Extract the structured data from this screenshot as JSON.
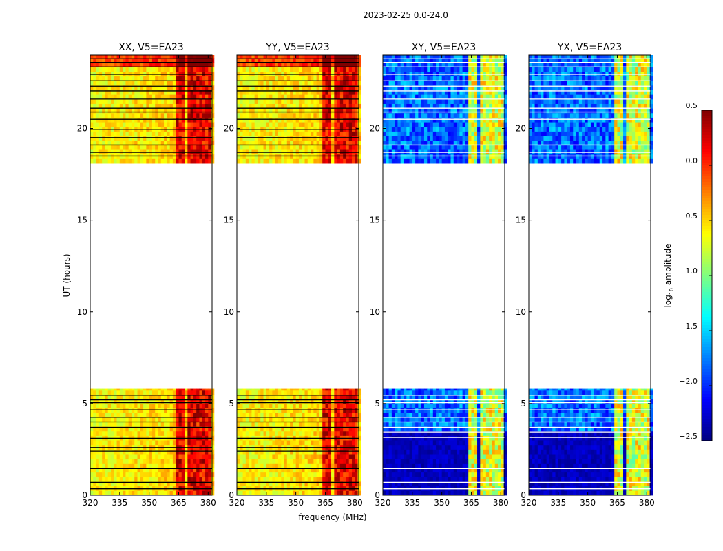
{
  "figure_title": "2023-02-25 0.0-24.0",
  "chart_data": {
    "type": "heatmap",
    "xlabel": "frequency (MHz)",
    "ylabel": "UT (hours)",
    "xlim": [
      320,
      382
    ],
    "ylim": [
      0,
      24
    ],
    "x_ticks": [
      320,
      335,
      350,
      365,
      380
    ],
    "y_ticks": [
      0,
      5,
      10,
      15,
      20
    ],
    "empty_ut_range": [
      5.8,
      18.1
    ],
    "rfi_bands_mhz": [
      [
        363.5,
        368.5
      ],
      [
        369.5,
        373.5
      ],
      [
        374.5,
        378.5
      ],
      [
        379.0,
        381.5
      ]
    ],
    "panels": [
      {
        "title": "XX, V5=EA23",
        "kind": "parallel",
        "flag_line_color": "#000000",
        "flag_lines_ut": [
          0.35,
          0.7,
          1.45,
          2.4,
          2.6,
          3.1,
          3.7,
          4.0,
          4.25,
          4.65,
          5.05,
          5.2,
          5.45,
          18.5,
          18.7,
          19.1,
          19.5,
          19.95,
          20.5,
          20.9,
          21.1,
          21.6,
          22.05,
          22.3,
          22.6,
          22.95,
          23.35,
          23.6,
          23.8
        ]
      },
      {
        "title": "YY, V5=EA23",
        "kind": "parallel",
        "flag_line_color": "#000000",
        "flag_lines_ut": [
          0.35,
          0.7,
          1.45,
          2.4,
          2.6,
          3.1,
          3.7,
          4.0,
          4.25,
          4.65,
          5.05,
          5.2,
          5.45,
          18.5,
          18.7,
          19.1,
          19.5,
          19.95,
          20.5,
          20.9,
          21.1,
          21.6,
          22.05,
          22.3,
          22.6,
          22.95,
          23.35,
          23.6,
          23.8
        ]
      },
      {
        "title": "XY, V5=EA23",
        "kind": "cross",
        "flag_line_color": "#ffffff",
        "flag_lines_ut": [
          0.35,
          0.7,
          1.45,
          3.15,
          3.45,
          3.7,
          4.0,
          4.25,
          4.65,
          5.05,
          5.2,
          5.45,
          18.5,
          18.7,
          19.1,
          20.5,
          20.9,
          21.1,
          21.6,
          22.05,
          22.3,
          22.6,
          22.95,
          23.35,
          23.6,
          23.8
        ]
      },
      {
        "title": "YX, V5=EA23",
        "kind": "cross",
        "flag_line_color": "#ffffff",
        "flag_lines_ut": [
          0.35,
          0.7,
          1.45,
          3.15,
          3.45,
          3.7,
          4.0,
          4.25,
          4.65,
          5.05,
          5.2,
          5.45,
          18.5,
          18.7,
          19.1,
          20.5,
          20.9,
          21.1,
          21.6,
          22.05,
          22.3,
          22.6,
          22.95,
          23.35,
          23.6,
          23.8
        ]
      }
    ],
    "colorbar": {
      "label_main": "log",
      "label_sub": "10",
      "label_suffix": " amplitude",
      "colormap": "jet",
      "range": [
        -2.5,
        0.5
      ],
      "ticks": [
        0.5,
        0.0,
        -0.5,
        -1.0,
        -1.5,
        -2.0,
        -2.5
      ],
      "tick_labels": [
        "0.5",
        "0.0",
        "−0.5",
        "−1.0",
        "−1.5",
        "−2.0",
        "−2.5"
      ]
    }
  }
}
